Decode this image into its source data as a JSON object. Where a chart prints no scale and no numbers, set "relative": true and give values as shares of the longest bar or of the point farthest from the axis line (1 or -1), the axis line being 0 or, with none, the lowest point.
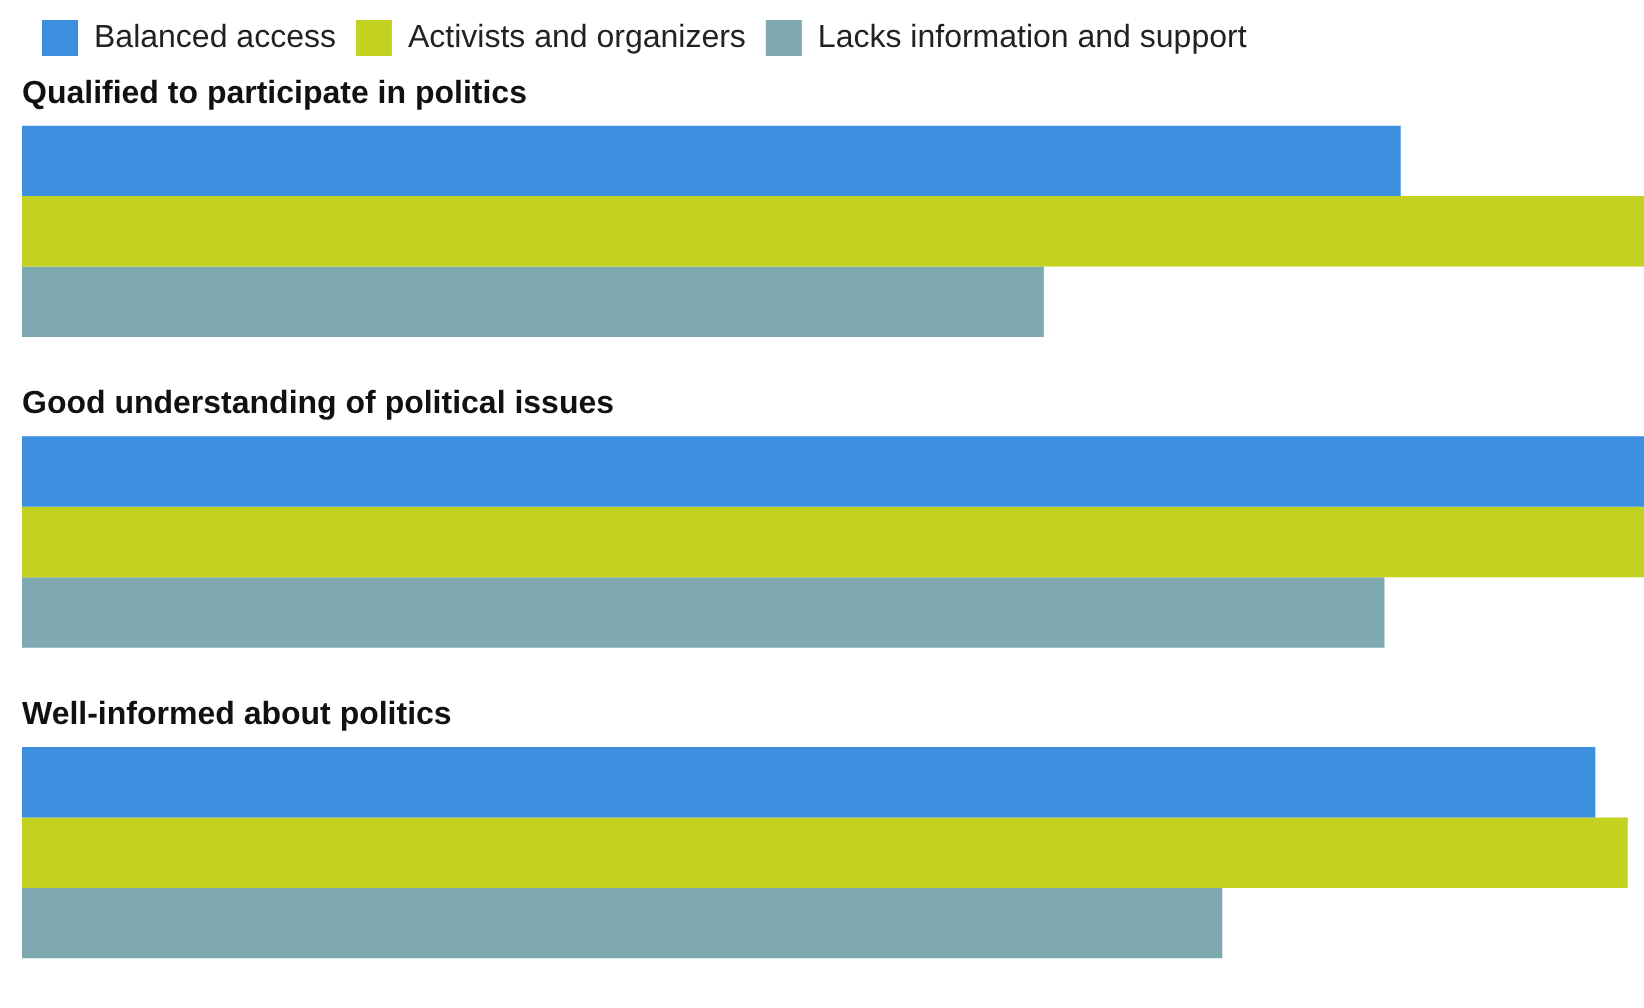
{
  "chart_data": {
    "type": "bar",
    "orientation": "horizontal",
    "relative": true,
    "legend": "top left",
    "categories": [
      "Qualified to participate in politics",
      "Good understanding of political issues",
      "Well-informed about politics"
    ],
    "series": [
      {
        "name": "Balanced access",
        "color": "#3d8fe0",
        "values": [
          0.85,
          1,
          0.97
        ]
      },
      {
        "name": "Activists and organizers",
        "color": "#c3d120",
        "values": [
          1,
          1,
          0.99
        ]
      },
      {
        "name": "Lacks information and support",
        "color": "#7fa9b0",
        "values": [
          0.63,
          0.84,
          0.74
        ]
      }
    ]
  }
}
